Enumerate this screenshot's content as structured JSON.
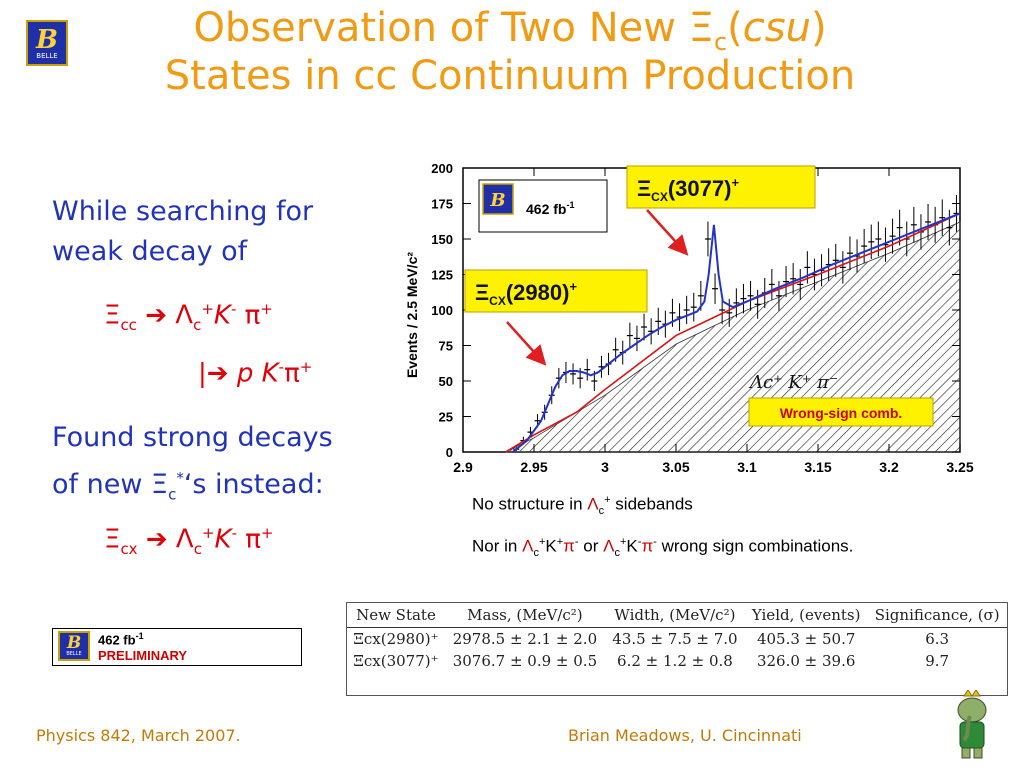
{
  "title": {
    "line1_pre": "Observation of Two New ",
    "line1_xi": "Ξ",
    "line1_sub": "c",
    "line1_paren_open": "(",
    "line1_italic": "csu",
    "line1_paren_close": ")",
    "line2": "States in cc Continuum Production"
  },
  "logo": {
    "letter": "B",
    "word": "BELLE"
  },
  "left": {
    "para1": "While searching for weak decay of",
    "decay1": {
      "xi": "Ξ",
      "xi_sub": "cc",
      "arrow": "➔",
      "lam": "Λ",
      "lam_sub": "c",
      "lam_sup": "+",
      "k": "K",
      "k_sup": "-",
      "pi": "π",
      "pi_sup": "+"
    },
    "decay2": {
      "bar": "|",
      "arrow": "➔",
      "p": "p",
      "k": "K",
      "k_sup": "-",
      "pi": "π",
      "pi_sup": "+"
    },
    "para2_l1": "Found strong decays",
    "para2_l2_pre": "of new ",
    "para2_xi": "Ξ",
    "para2_sub": "c",
    "para2_sup": "*",
    "para2_post": "‘s instead:",
    "decay3": {
      "xi": "Ξ",
      "xi_sub": "cx",
      "arrow": "➔",
      "lam": "Λ",
      "lam_sub": "c",
      "lam_sup": "+",
      "k": "K",
      "k_sup": "-",
      "pi": "π",
      "pi_sup": "+"
    }
  },
  "lumi_box": {
    "value": "462 fb",
    "exp": "-1",
    "status": "PRELIMINARY"
  },
  "notes": {
    "line1_pre": "No structure in ",
    "line1_sym": "Λ",
    "line1_sub": "c",
    "line1_sup": "+",
    "line1_post": " sidebands",
    "line2_pre": "Nor in ",
    "line2_a": "Λ",
    "line2_a_sub": "c",
    "line2_a_sup": "+",
    "line2_k1": "K",
    "line2_k1_sup": "+",
    "line2_pi1": "π",
    "line2_pi1_sup": "-",
    "line2_or": " or ",
    "line2_b": "Λ",
    "line2_b_sub": "c",
    "line2_b_sup": "+",
    "line2_k2": "K",
    "line2_k2_sup": "-",
    "line2_pi2": "π",
    "line2_pi2_sup": "-",
    "line2_post": " wrong sign combinations."
  },
  "table": {
    "headers": [
      "New State",
      "Mass, (MeV/c²)",
      "Width, (MeV/c²)",
      "Yield, (events)",
      "Significance, (σ)"
    ],
    "rows": [
      [
        "Ξcx(2980)⁺",
        "2978.5 ± 2.1 ± 2.0",
        "43.5 ± 7.5 ± 7.0",
        "405.3 ± 50.7",
        "6.3"
      ],
      [
        "Ξcx(3077)⁺",
        "3076.7 ± 0.9 ± 0.5",
        "6.2 ± 1.2 ± 0.8",
        "326.0 ± 39.6",
        "9.7"
      ]
    ]
  },
  "footer": {
    "left": "Physics 842, March 2007.",
    "right": "Brian Meadows, U. Cincinnati"
  },
  "chart_data": {
    "type": "line",
    "ylabel": "Events / 2.5 MeV/c²",
    "xlim": [
      2.9,
      3.25
    ],
    "ylim": [
      0,
      200
    ],
    "x_ticks": [
      "2.9",
      "2.95",
      "3",
      "3.05",
      "3.1",
      "3.15",
      "3.2",
      "3.25"
    ],
    "y_ticks": [
      "0",
      "25",
      "50",
      "75",
      "100",
      "125",
      "150",
      "175",
      "200"
    ],
    "inset": {
      "value": "462 fb",
      "exp": "-1"
    },
    "peak1_label": {
      "xi": "Ξ",
      "sub": "CX",
      "text": "(2980)",
      "sup": "+"
    },
    "peak2_label": {
      "xi": "Ξ",
      "sub": "CX",
      "text": "(3077)",
      "sup": "+"
    },
    "legend": {
      "entry": "Λc⁺ K⁺ π⁻",
      "wrong_sign": "Wrong-sign comb."
    },
    "colors": {
      "data": "#000000",
      "fit_total": "#2233cc",
      "background": "#dd1111",
      "label_fill": "#fff200",
      "wrong_sign_text": "#cc0000"
    },
    "data_x": [
      2.9375,
      2.9425,
      2.9475,
      2.9525,
      2.9575,
      2.9625,
      2.9675,
      2.9725,
      2.9775,
      2.9825,
      2.9875,
      2.9925,
      2.9975,
      3.0025,
      3.0075,
      3.0125,
      3.0175,
      3.0225,
      3.0275,
      3.0325,
      3.0375,
      3.0425,
      3.0475,
      3.0525,
      3.0575,
      3.0625,
      3.0675,
      3.0725,
      3.0775,
      3.0825,
      3.0875,
      3.0925,
      3.0975,
      3.1025,
      3.1075,
      3.1125,
      3.1175,
      3.1225,
      3.1275,
      3.1325,
      3.1375,
      3.1425,
      3.1475,
      3.1525,
      3.1575,
      3.1625,
      3.1675,
      3.1725,
      3.1775,
      3.1825,
      3.1875,
      3.1925,
      3.1975,
      3.2025,
      3.2075,
      3.2125,
      3.2175,
      3.2225,
      3.2275,
      3.2325,
      3.2375,
      3.2425,
      3.2475
    ],
    "data_y": [
      2,
      8,
      14,
      22,
      28,
      40,
      52,
      56,
      55,
      52,
      58,
      50,
      60,
      62,
      72,
      70,
      82,
      80,
      88,
      85,
      92,
      90,
      98,
      95,
      100,
      102,
      110,
      150,
      115,
      100,
      98,
      105,
      108,
      110,
      104,
      112,
      118,
      110,
      120,
      122,
      118,
      130,
      125,
      128,
      132,
      135,
      130,
      140,
      138,
      145,
      148,
      150,
      146,
      152,
      158,
      150,
      160,
      155,
      162,
      160,
      165,
      158,
      168
    ],
    "fit_x": [
      2.935,
      2.945,
      2.955,
      2.96,
      2.965,
      2.97,
      2.975,
      2.98,
      2.985,
      2.99,
      2.995,
      3.0,
      3.01,
      3.02,
      3.03,
      3.04,
      3.05,
      3.06,
      3.065,
      3.07,
      3.073,
      3.0767,
      3.08,
      3.083,
      3.09,
      3.1,
      3.12,
      3.14,
      3.16,
      3.18,
      3.2,
      3.22,
      3.25
    ],
    "fit_y": [
      0,
      8,
      22,
      34,
      46,
      54,
      57,
      57,
      56,
      54,
      56,
      60,
      68,
      75,
      82,
      88,
      93,
      97,
      99,
      106,
      125,
      160,
      125,
      106,
      102,
      106,
      115,
      123,
      132,
      140,
      148,
      156,
      168
    ],
    "bg_x": [
      2.93,
      2.95,
      2.98,
      3.0,
      3.05,
      3.1,
      3.15,
      3.2,
      3.25
    ],
    "bg_y": [
      0,
      12,
      28,
      44,
      82,
      106,
      125,
      145,
      168
    ],
    "ws_x": [
      2.93,
      2.95,
      3.0,
      3.05,
      3.1,
      3.15,
      3.2,
      3.25
    ],
    "ws_y": [
      0,
      10,
      40,
      76,
      100,
      120,
      140,
      162
    ]
  }
}
